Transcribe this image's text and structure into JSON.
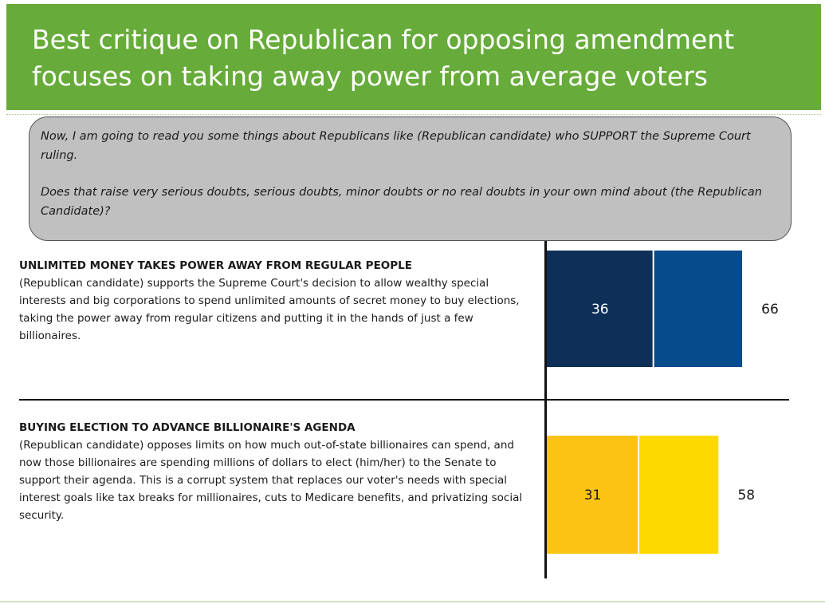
{
  "header": {
    "title_line1": "Best critique on Republican for opposing amendment",
    "title_line2": "focuses on taking away power from average voters"
  },
  "question": {
    "paragraph1": "Now, I am going to read you some things about Republicans like (Republican candidate) who SUPPORT the Supreme Court ruling.",
    "paragraph2": "Does that raise very serious doubts, serious doubts, minor doubts or no real doubts in your own mind about (the Republican Candidate)?"
  },
  "items": [
    {
      "title": "UNLIMITED MONEY TAKES POWER AWAY FROM REGULAR PEOPLE",
      "body": "(Republican candidate) supports the Supreme Court's decision to allow wealthy special interests and big corporations to spend unlimited amounts of secret money to buy elections, taking the power away from regular citizens and putting it in the hands of just a few billionaires."
    },
    {
      "title": "BUYING ELECTION TO ADVANCE BILLIONAIRE'S AGENDA",
      "body": "(Republican candidate) opposes limits on how much out-of-state billionaires can spend, and now those billionaires are spending millions of dollars to elect (him/her) to the Senate to support their agenda. This is a corrupt system that replaces our voter's needs with special interest goals like tax breaks for millionaires, cuts to Medicare benefits, and privatizing social security."
    }
  ],
  "chart_data": {
    "type": "bar",
    "orientation": "horizontal",
    "stacked": true,
    "categories": [
      "UNLIMITED MONEY TAKES POWER AWAY FROM REGULAR PEOPLE",
      "BUYING ELECTION TO ADVANCE BILLIONAIRE'S AGENDA"
    ],
    "segments": [
      {
        "values": [
          36,
          31
        ],
        "labels": [
          "36",
          "31"
        ],
        "colors": [
          "#0E2F58",
          "#FCC312"
        ]
      },
      {
        "values": [
          30,
          27
        ],
        "colors": [
          "#064B8C",
          "#FDD900"
        ]
      }
    ],
    "totals": [
      66,
      58
    ],
    "total_labels": [
      "66",
      "58"
    ],
    "xlim": [
      0,
      66
    ],
    "grid": false,
    "legend": "none",
    "segment_separator_color": "#ffffff"
  }
}
